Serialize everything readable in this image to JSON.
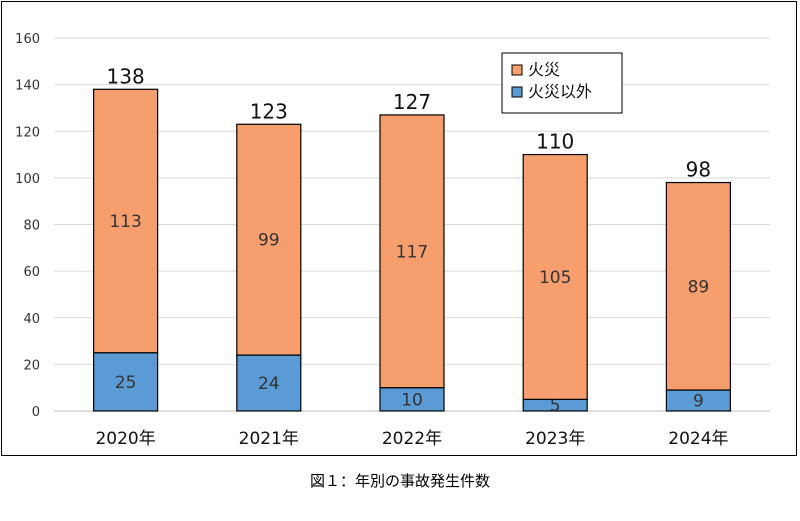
{
  "caption": "図１：年別の事故発生件数",
  "chart_data": {
    "type": "bar",
    "stacked": true,
    "categories": [
      "2020年",
      "2021年",
      "2022年",
      "2023年",
      "2024年"
    ],
    "series": [
      {
        "name": "火災以外",
        "values": [
          25,
          24,
          10,
          5,
          9
        ],
        "color": "#5b9bd5"
      },
      {
        "name": "火災",
        "values": [
          113,
          99,
          117,
          105,
          89
        ],
        "color": "#f79e6e"
      }
    ],
    "totals": [
      138,
      123,
      127,
      110,
      98
    ],
    "ylim": [
      0,
      160
    ],
    "yticks": [
      0,
      20,
      40,
      60,
      80,
      100,
      120,
      140,
      160
    ],
    "grid": true,
    "legend_position": "top-right",
    "legend_order": [
      "火災",
      "火災以外"
    ]
  }
}
